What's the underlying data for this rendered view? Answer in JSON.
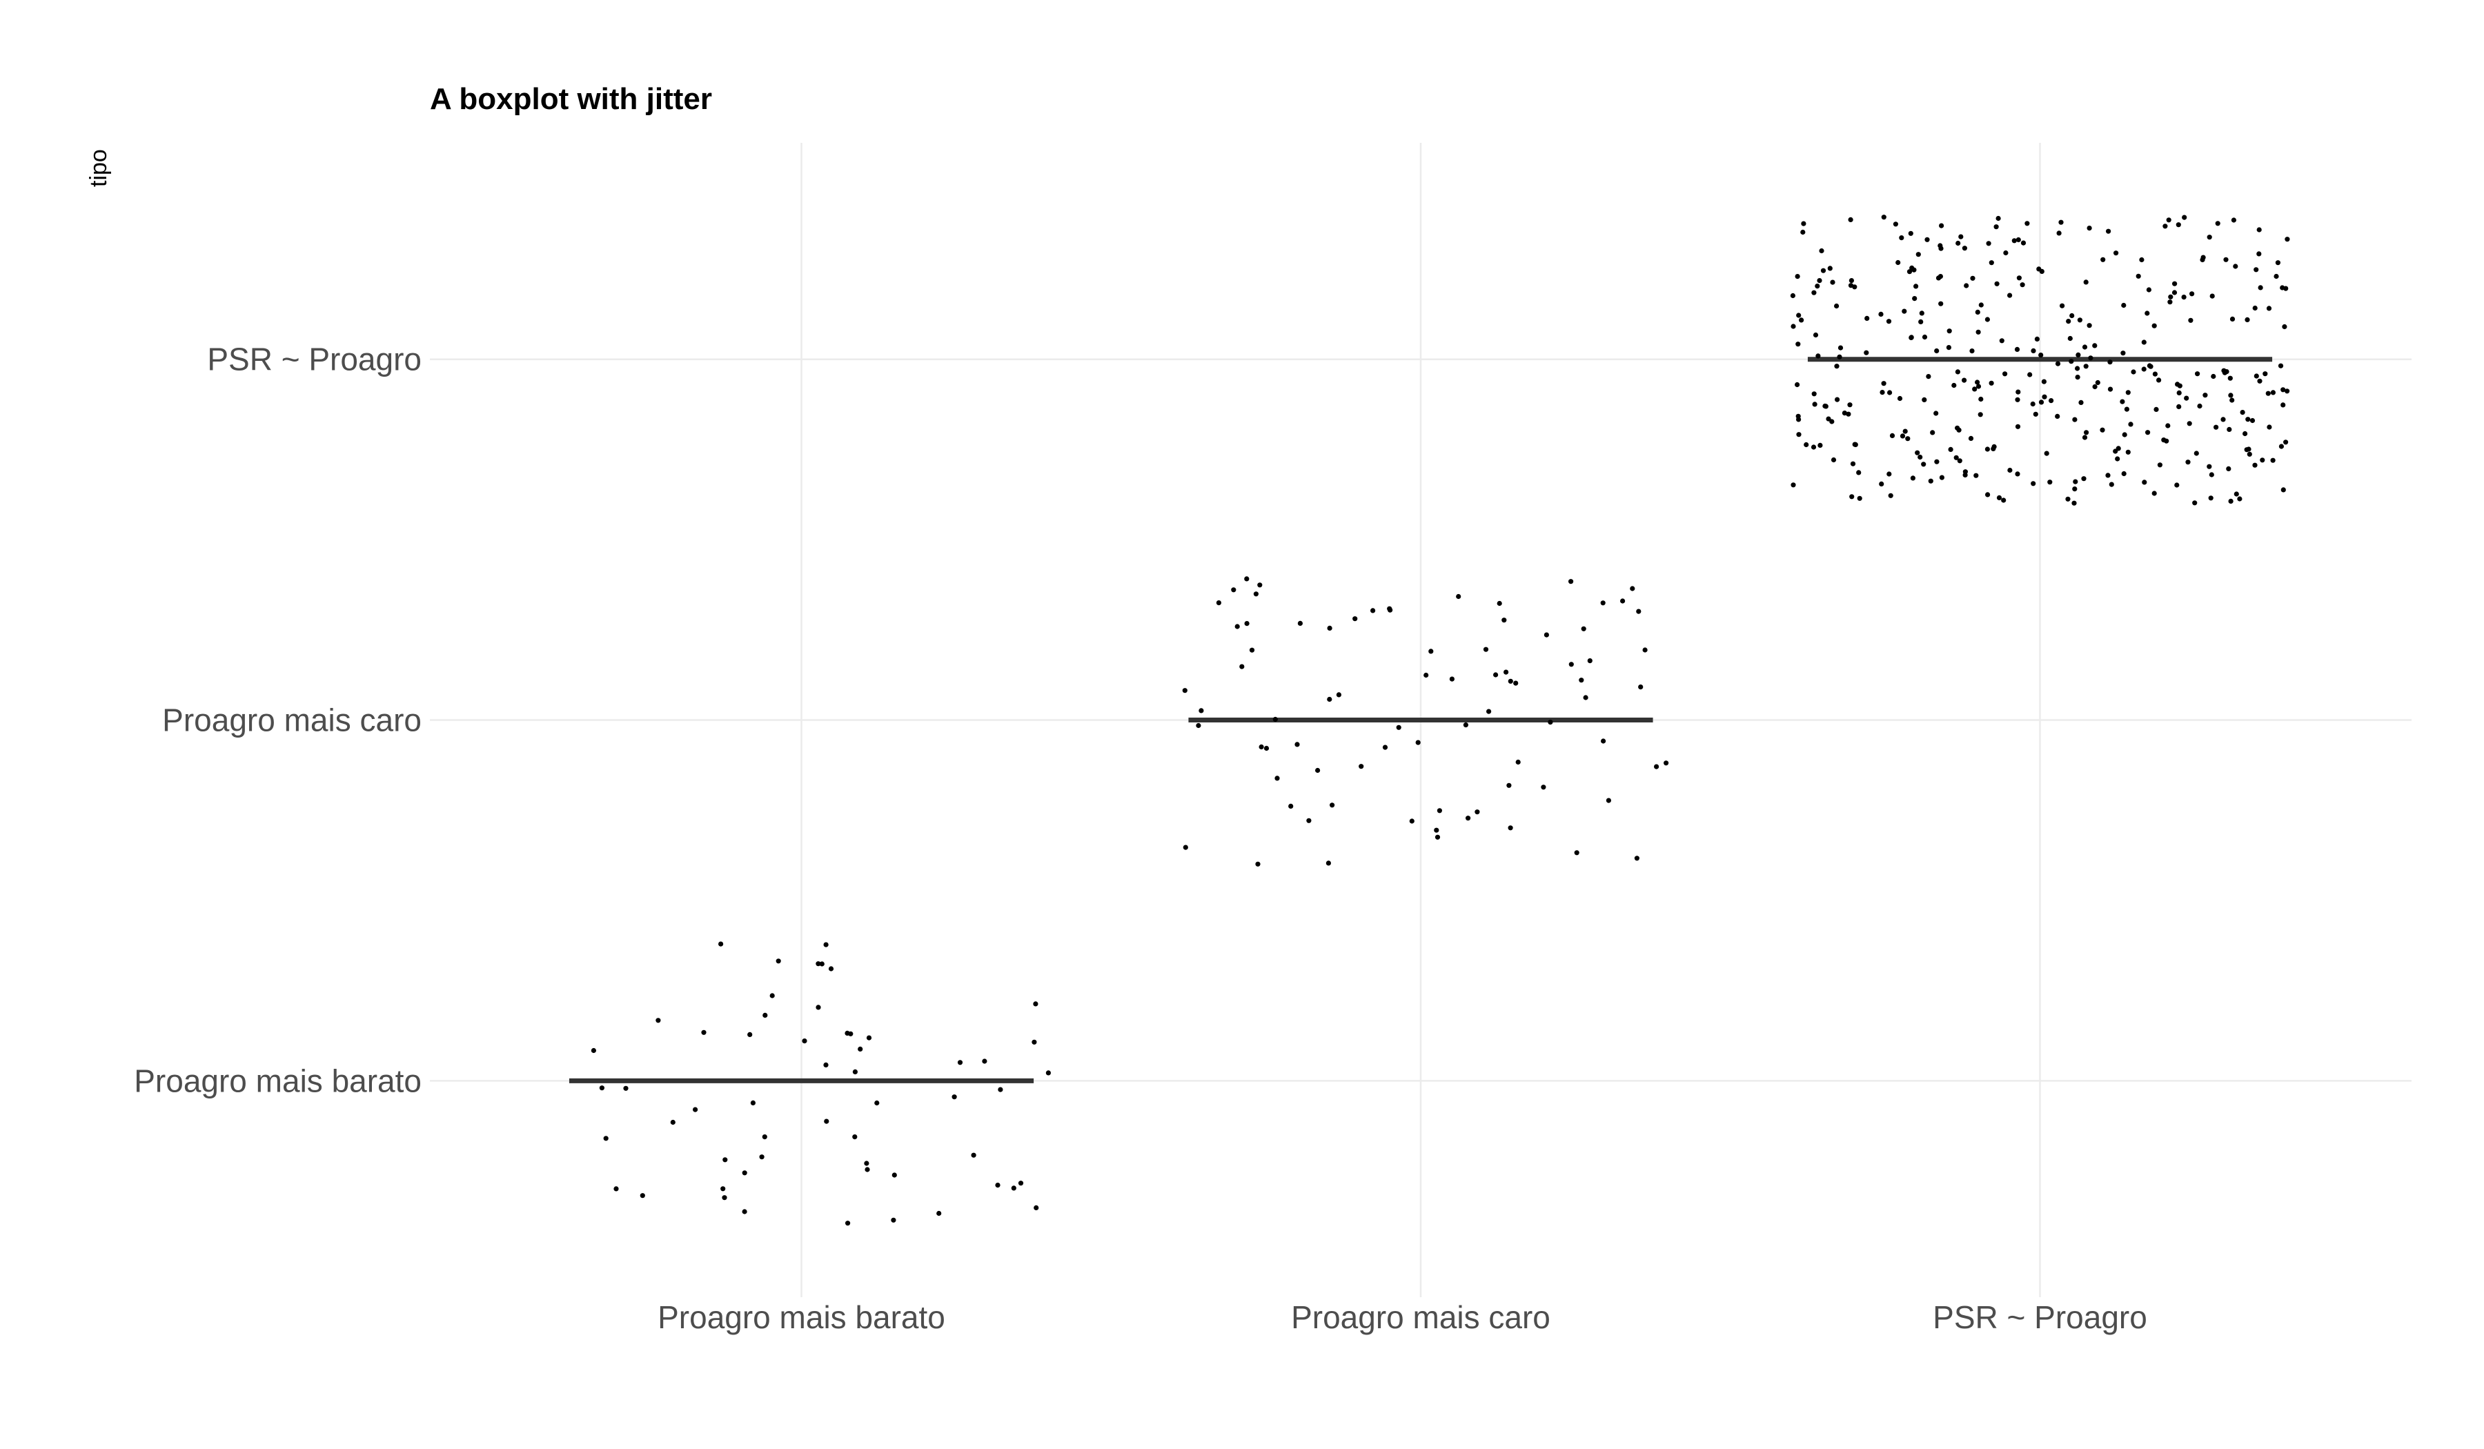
{
  "chart_data": {
    "type": "boxplot-jitter",
    "title": "A boxplot with jitter",
    "xlabel": "",
    "ylabel": "tipo",
    "categories": [
      "Proagro mais barato",
      "Proagro mais caro",
      "PSR ~ Proagro"
    ],
    "x_tick_labels": [
      "Proagro mais barato",
      "Proagro mais caro",
      "PSR ~ Proagro"
    ],
    "y_tick_labels": [
      "Proagro mais barato",
      "Proagro mais caro",
      "PSR ~ Proagro"
    ],
    "grid": true,
    "legend": "none",
    "point_counts": [
      56,
      79,
      330
    ],
    "jitter_width": 0.4,
    "jitter_height": 0.4,
    "box_width": 0.75,
    "colors": {
      "points": "#000000",
      "median": "#333333",
      "grid": "#ebebeb"
    }
  }
}
